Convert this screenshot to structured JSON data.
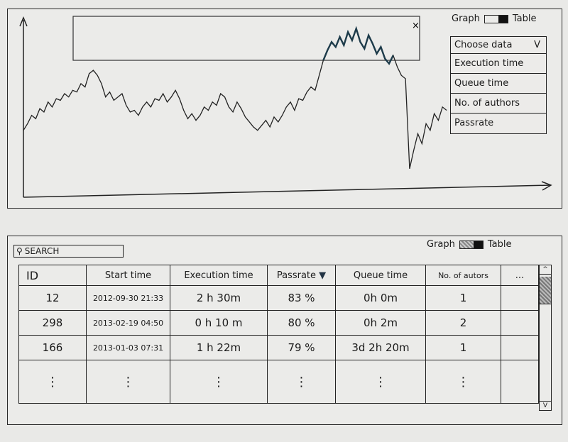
{
  "graph_panel": {
    "toggle": {
      "left_label": "Graph",
      "right_label": "Table",
      "selected": "Table"
    },
    "dropdown": {
      "header": "Choose data",
      "arrow": "V",
      "options": [
        "Execution time",
        "Queue time",
        "No. of authors",
        "Passrate"
      ]
    },
    "zoom_window_close": "×"
  },
  "chart_data": {
    "type": "line",
    "title": "",
    "xlabel": "",
    "ylabel": "",
    "grid": false,
    "x": [
      0,
      1,
      2,
      3,
      4,
      5,
      6,
      7,
      8,
      9,
      10,
      11,
      12,
      13,
      14,
      15,
      16,
      17,
      18,
      19,
      20,
      21,
      22,
      23,
      24,
      25,
      26,
      27,
      28,
      29,
      30,
      31,
      32,
      33,
      34,
      35,
      36,
      37,
      38,
      39,
      40,
      41,
      42,
      43,
      44,
      45,
      46,
      47,
      48,
      49,
      50,
      51,
      52,
      53,
      54,
      55,
      56,
      57,
      58,
      59,
      60,
      61,
      62,
      63,
      64,
      65,
      66,
      67,
      68,
      69,
      70,
      71,
      72,
      73,
      74,
      75,
      76,
      77,
      78,
      79,
      80,
      81,
      82,
      83,
      84,
      85,
      86,
      87,
      88,
      89,
      90,
      91,
      92,
      93,
      94,
      95,
      96,
      97,
      98,
      99,
      100,
      101,
      102,
      103
    ],
    "values": [
      38,
      42,
      47,
      45,
      51,
      49,
      55,
      52,
      57,
      56,
      60,
      58,
      62,
      61,
      66,
      64,
      72,
      74,
      71,
      66,
      58,
      61,
      56,
      58,
      60,
      53,
      49,
      50,
      47,
      52,
      55,
      52,
      57,
      56,
      60,
      55,
      58,
      62,
      57,
      50,
      45,
      48,
      44,
      47,
      52,
      50,
      55,
      53,
      60,
      58,
      52,
      49,
      55,
      51,
      46,
      43,
      40,
      38,
      41,
      44,
      40,
      46,
      43,
      47,
      52,
      55,
      50,
      57,
      56,
      61,
      64,
      62,
      71,
      80,
      86,
      91,
      88,
      94,
      89,
      97,
      92,
      99,
      91,
      87,
      95,
      90,
      84,
      88,
      81,
      78,
      83,
      76,
      71,
      69,
      15,
      26,
      36,
      30,
      42,
      38,
      48,
      44,
      52,
      50
    ]
  },
  "table_panel": {
    "search_placeholder": "SEARCH",
    "toggle": {
      "left_label": "Graph",
      "right_label": "Table",
      "selected": "Table"
    },
    "columns": [
      "ID",
      "Start time",
      "Execution time",
      "Passrate",
      "Queue time",
      "No. of autors",
      "..."
    ],
    "sort_indicator": "▼",
    "rows": [
      {
        "id": "12",
        "start": "2012-09-30 21:33",
        "exec": "2 h 30m",
        "pass": "83 %",
        "queue": "0h 0m",
        "authors": "1"
      },
      {
        "id": "298",
        "start": "2013-02-19 04:50",
        "exec": "0 h 10 m",
        "pass": "80 %",
        "queue": "0h 2m",
        "authors": "2"
      },
      {
        "id": "166",
        "start": "2013-01-03 07:31",
        "exec": "1 h 22m",
        "pass": "79 %",
        "queue": "3d 2h 20m",
        "authors": "1"
      }
    ],
    "ellipsis": "⋮",
    "scroll_up": "^",
    "scroll_down": "V"
  }
}
